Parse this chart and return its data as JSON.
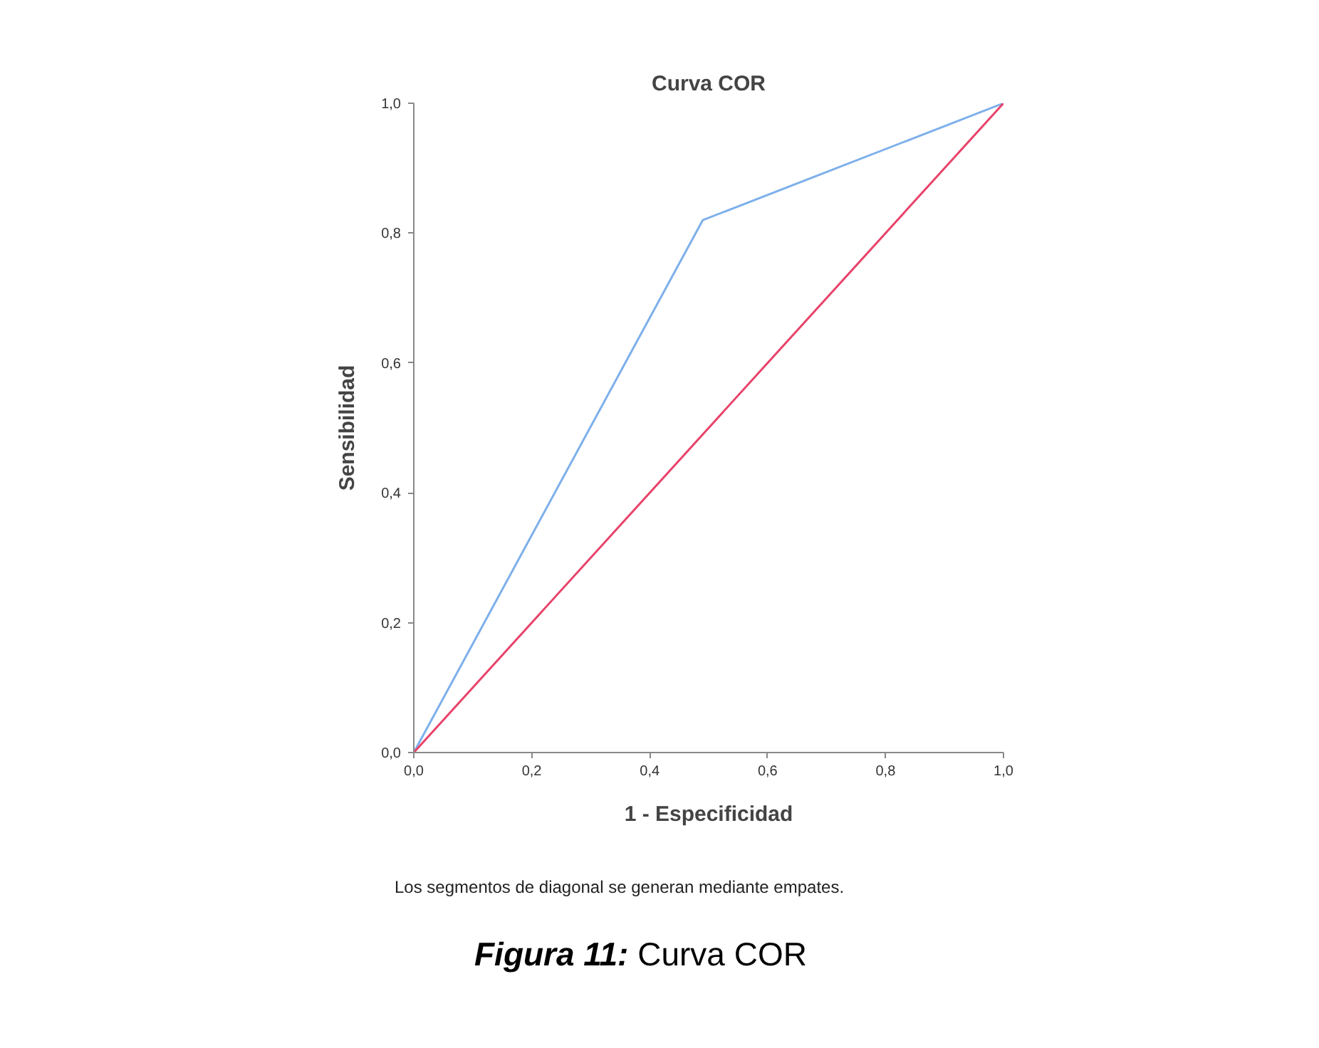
{
  "chart_data": {
    "type": "line",
    "title": "Curva COR",
    "xlabel": "1 - Especificidad",
    "ylabel": "Sensibilidad",
    "series": [
      {
        "color": "#7eb0ea",
        "x": [
          0,
          0.49,
          1
        ],
        "values": [
          0,
          0.82,
          1
        ]
      },
      {
        "color": "#e8436a",
        "x": [
          0,
          1
        ],
        "values": [
          0,
          1
        ]
      }
    ],
    "xlim": [
      0,
      1
    ],
    "ylim": [
      0,
      1
    ],
    "xticks": [
      {
        "value": 0,
        "label": "0,0"
      },
      {
        "value": 0.2,
        "label": "0,2"
      },
      {
        "value": 0.4,
        "label": "0,4"
      },
      {
        "value": 0.6,
        "label": "0,6"
      },
      {
        "value": 0.8,
        "label": "0,8"
      },
      {
        "value": 1,
        "label": "1,0"
      }
    ],
    "yticks": [
      {
        "value": 0,
        "label": "0,0"
      },
      {
        "value": 0.2,
        "label": "0,2"
      },
      {
        "value": 0.4,
        "label": "0,4"
      },
      {
        "value": 0.6,
        "label": "0,6"
      },
      {
        "value": 0.8,
        "label": "0,8"
      },
      {
        "value": 1,
        "label": "1,0"
      }
    ],
    "grid": false,
    "marker": "none",
    "line_style": "solid",
    "annotations": [
      "Los segmentos de diagonal se generan mediante empates.",
      "Figura 11: Curva COR"
    ]
  }
}
